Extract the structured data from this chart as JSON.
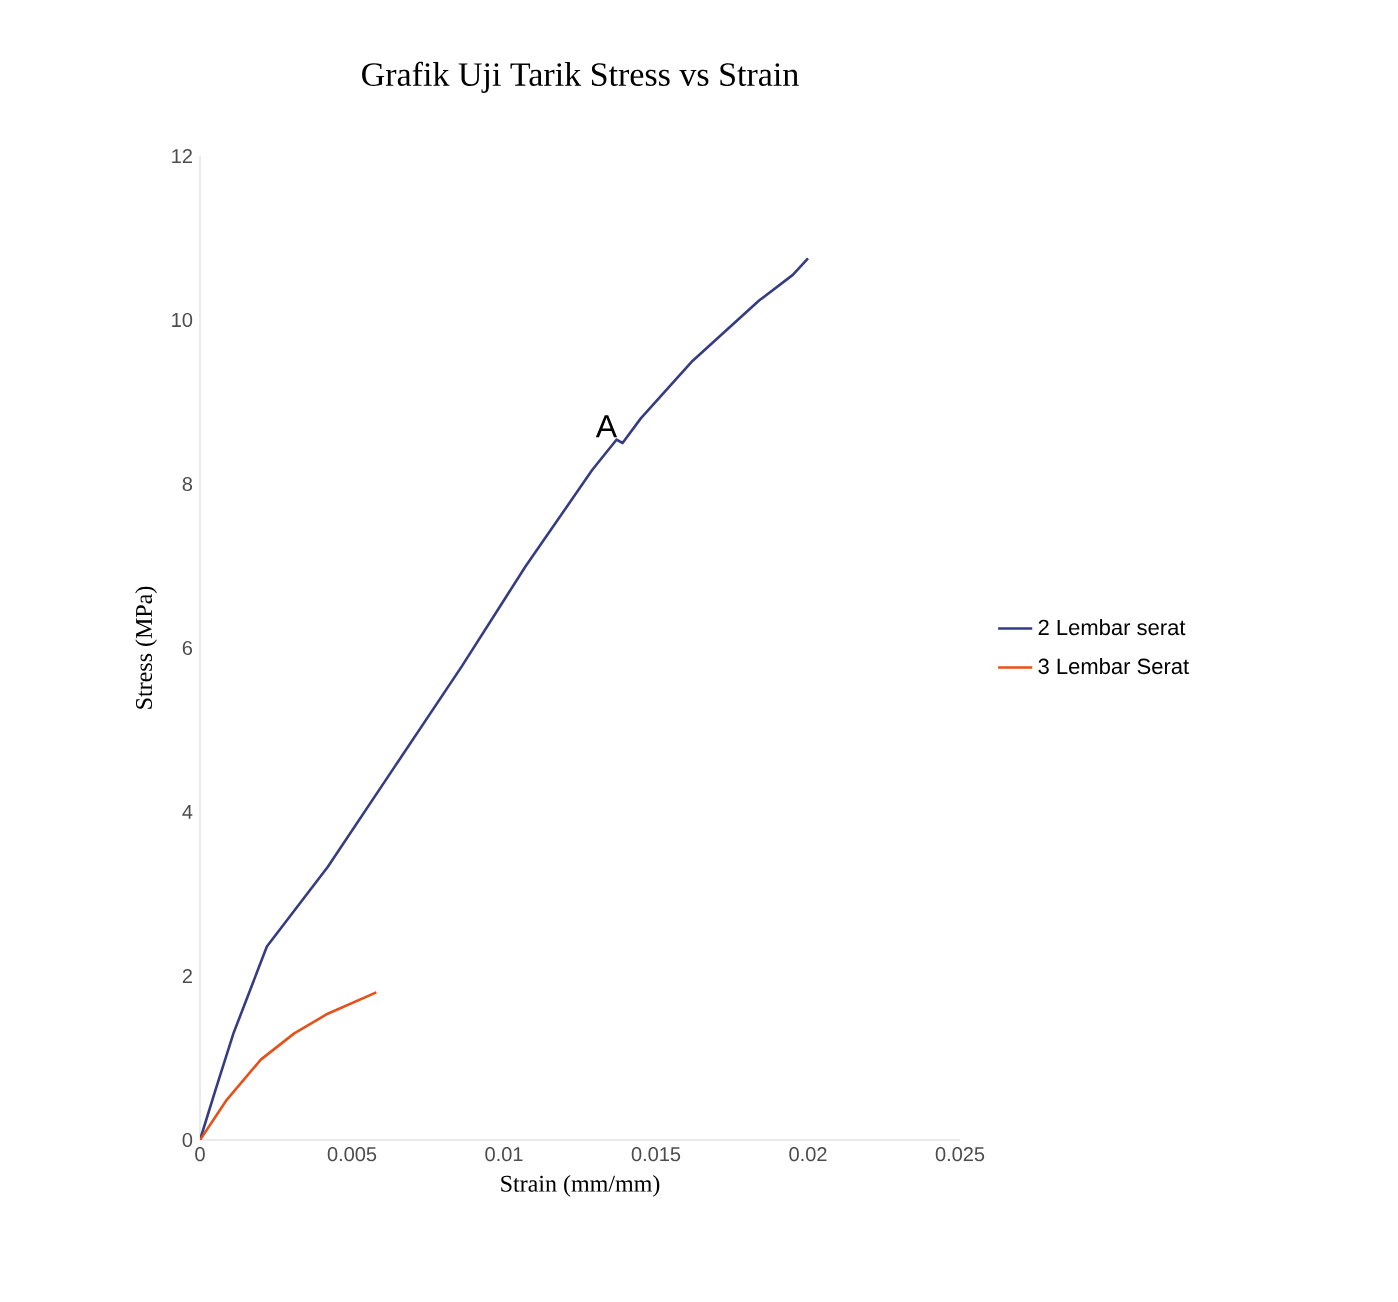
{
  "chart_data": {
    "type": "line",
    "title": "Grafik Uji Tarik Stress vs Strain",
    "xlabel": "Strain (mm/mm)",
    "ylabel": "Stress (MPa)",
    "xlim": [
      0,
      0.025
    ],
    "xticks": [
      0,
      0.005,
      0.01,
      0.015,
      0.02,
      0.025
    ],
    "ylim": [
      0,
      12
    ],
    "yticks": [
      0,
      2,
      4,
      6,
      8,
      10,
      12
    ],
    "grid": false,
    "legend": "right",
    "marker": "none",
    "line_style": "solid",
    "annotations": [
      {
        "text": "A",
        "x": 0.0138,
        "y": 8.54
      }
    ],
    "series": [
      {
        "name": "2 Lembar serat",
        "color": "#363c82",
        "x": [
          0,
          0.0005,
          0.0011,
          0.0022,
          0.0042,
          0.0064,
          0.0086,
          0.0107,
          0.0129,
          0.0137,
          0.0139,
          0.0145,
          0.0162,
          0.0184,
          0.0195,
          0.02
        ],
        "values": [
          0,
          0.6,
          1.3,
          2.36,
          3.33,
          4.55,
          5.77,
          6.99,
          8.17,
          8.54,
          8.5,
          8.8,
          9.5,
          10.24,
          10.55,
          10.75
        ]
      },
      {
        "name": "3 Lembar Serat",
        "color": "#e8501a",
        "x": [
          0,
          0.00088,
          0.002,
          0.0031,
          0.0042,
          0.0058
        ],
        "values": [
          0,
          0.49,
          0.98,
          1.3,
          1.54,
          1.8
        ]
      }
    ]
  }
}
